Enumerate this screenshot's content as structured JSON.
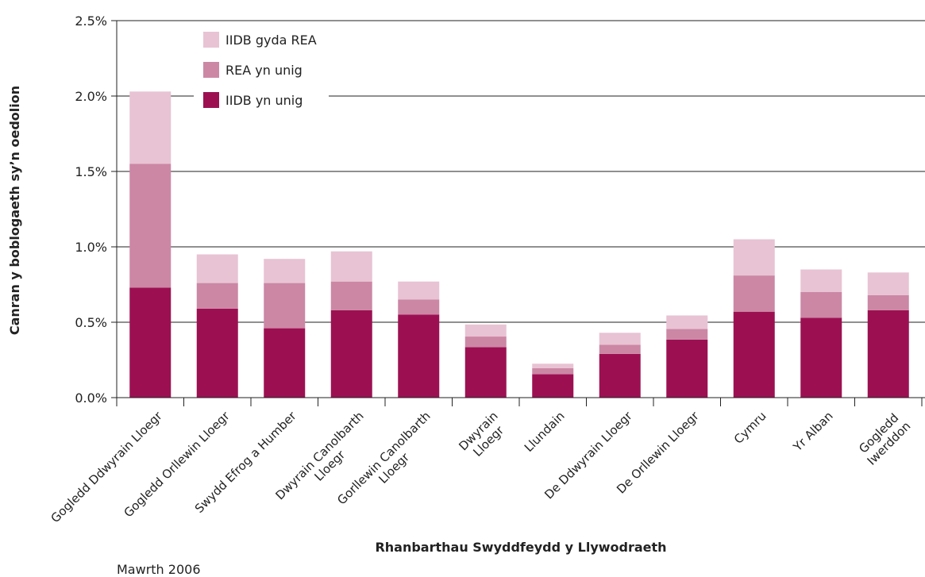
{
  "chart_data": {
    "type": "stacked_bar",
    "x_label": "Rhanbarthau Swyddfeydd y Llywodraeth",
    "y_label": "Canran y boblogaeth sy’n oedolion",
    "footnote": "Mawrth 2006",
    "categories": [
      "Gogledd Ddwyrain Lloegr",
      "Gogledd Orllewin Lloegr",
      "Swydd Efrog a Humber",
      "Dwyrain Canolbarth\nLloegr",
      "Gorllewin Canolbarth\nLloegr",
      "Dwyrain\nLloegr",
      "Llundain",
      "De Ddwyrain Lloegr",
      "De Orllewin Lloegr",
      "Cymru",
      "Yr Alban",
      "Gogledd Iwerddon"
    ],
    "series": [
      {
        "name": "IIDB yn unig",
        "color": "#9c1052",
        "values": [
          0.73,
          0.59,
          0.46,
          0.58,
          0.55,
          0.335,
          0.155,
          0.29,
          0.385,
          0.57,
          0.53,
          0.58
        ]
      },
      {
        "name": "REA yn unig",
        "color": "#cc87a5",
        "values": [
          0.82,
          0.17,
          0.3,
          0.19,
          0.1,
          0.07,
          0.04,
          0.06,
          0.07,
          0.24,
          0.17,
          0.1
        ]
      },
      {
        "name": "IIDB gyda REA",
        "color": "#e8c3d3",
        "values": [
          0.48,
          0.19,
          0.16,
          0.2,
          0.12,
          0.08,
          0.03,
          0.08,
          0.09,
          0.24,
          0.15,
          0.15
        ]
      }
    ],
    "ylim": [
      0,
      2.5
    ],
    "yticks": [
      {
        "value": 0,
        "label": "0.0%"
      },
      {
        "value": 0.5,
        "label": "0.5%"
      },
      {
        "value": 1,
        "label": "1.0%"
      },
      {
        "value": 1.5,
        "label": "1.5%"
      },
      {
        "value": 2,
        "label": "2.0%"
      },
      {
        "value": 2.5,
        "label": "2.5%"
      }
    ],
    "grid": true,
    "legend": "top-left"
  }
}
